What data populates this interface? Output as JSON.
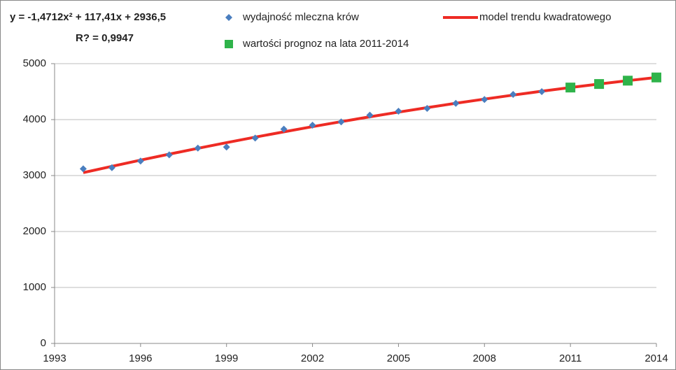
{
  "chart_data": {
    "type": "line",
    "annotations": [
      "y = -1,4712x² + 117,41x + 2936,5",
      "R? = 0,9947"
    ],
    "xlim": [
      1993,
      2014
    ],
    "xticks": [
      1993,
      1996,
      1999,
      2002,
      2005,
      2008,
      2011,
      2014
    ],
    "ylim": [
      0,
      5000
    ],
    "yticks": [
      0,
      1000,
      2000,
      3000,
      4000,
      5000
    ],
    "grid": true,
    "series": [
      {
        "name": "wydajność mleczna krów",
        "color": "#4a7ebf",
        "marker": "diamond",
        "x": [
          1994,
          1995,
          1996,
          1997,
          1998,
          1999,
          2000,
          2001,
          2002,
          2003,
          2004,
          2005,
          2006,
          2007,
          2008,
          2009,
          2010
        ],
        "values": [
          3120,
          3140,
          3260,
          3370,
          3490,
          3510,
          3670,
          3830,
          3900,
          3960,
          4080,
          4150,
          4200,
          4290,
          4360,
          4450,
          4500
        ]
      },
      {
        "name": "model trendu kwadratowego",
        "color": "#ee2b24",
        "marker": "line",
        "x": [
          1994,
          1995,
          1996,
          1997,
          1998,
          1999,
          2000,
          2001,
          2002,
          2003,
          2004,
          2005,
          2006,
          2007,
          2008,
          2009,
          2010,
          2011,
          2012,
          2013,
          2014
        ],
        "values": [
          3052.4,
          3165.4,
          3275.5,
          3382.6,
          3486.8,
          3588.0,
          3686.3,
          3781.6,
          3874.0,
          3963.5,
          4050.0,
          4133.6,
          4214.2,
          4291.9,
          4366.6,
          4438.4,
          4507.3,
          4573.2,
          4636.2,
          4696.2,
          4753.3
        ]
      },
      {
        "name": "wartości prognoz na lata 2011-2014",
        "color": "#2fb34a",
        "marker": "square",
        "x": [
          2011,
          2012,
          2013,
          2014
        ],
        "values": [
          4573.2,
          4636.2,
          4696.2,
          4753.3
        ]
      }
    ]
  }
}
